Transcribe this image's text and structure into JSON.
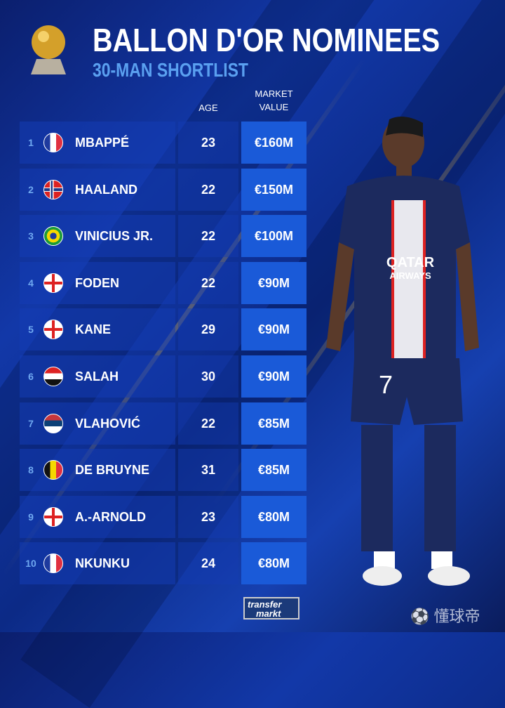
{
  "header": {
    "title": "BALLON D'OR NOMINEES",
    "subtitle": "30-MAN SHORTLIST"
  },
  "columns": {
    "age": "AGE",
    "market_value_line1": "MARKET",
    "market_value_line2": "VALUE"
  },
  "players": [
    {
      "rank": "1",
      "flag": "france",
      "name": "MBAPPÉ",
      "age": "23",
      "value": "€160M"
    },
    {
      "rank": "2",
      "flag": "norway",
      "name": "HAALAND",
      "age": "22",
      "value": "€150M"
    },
    {
      "rank": "3",
      "flag": "brazil",
      "name": "VINICIUS JR.",
      "age": "22",
      "value": "€100M"
    },
    {
      "rank": "4",
      "flag": "england",
      "name": "FODEN",
      "age": "22",
      "value": "€90M"
    },
    {
      "rank": "5",
      "flag": "england",
      "name": "KANE",
      "age": "29",
      "value": "€90M"
    },
    {
      "rank": "6",
      "flag": "egypt",
      "name": "SALAH",
      "age": "30",
      "value": "€90M"
    },
    {
      "rank": "7",
      "flag": "serbia",
      "name": "VLAHOVIĆ",
      "age": "22",
      "value": "€85M"
    },
    {
      "rank": "8",
      "flag": "belgium",
      "name": "DE BRUYNE",
      "age": "31",
      "value": "€85M"
    },
    {
      "rank": "9",
      "flag": "england",
      "name": "A.-ARNOLD",
      "age": "23",
      "value": "€80M"
    },
    {
      "rank": "10",
      "flag": "france",
      "name": "NKUNKU",
      "age": "24",
      "value": "€80M"
    }
  ],
  "player_photo": {
    "shirt_sponsor_1": "QATAR",
    "shirt_sponsor_2": "AIRWAYS",
    "shirt_number": "7"
  },
  "footer": {
    "logo_line1": "transfer",
    "logo_line2": "markt",
    "watermark": "懂球帝"
  },
  "colors": {
    "accent": "#1a5ad8",
    "subtitle": "#5aa0f0",
    "background": "#0c2a86"
  }
}
